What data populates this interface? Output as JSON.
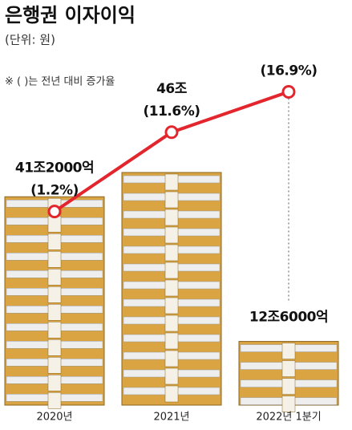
{
  "chart_data": {
    "type": "bar",
    "title": "은행권 이자이익",
    "subtitle": "(단위: 원)",
    "note": "※ (   )는 전년 대비 증가율",
    "categories": [
      "2020년",
      "2021년",
      "2022년 1분기"
    ],
    "values": [
      41200000000000,
      46000000000000,
      12600000000000
    ],
    "value_labels": [
      "41조2000억",
      "46조",
      "12조6000억"
    ],
    "color": "#d9a441",
    "growth": {
      "values": [
        1.2,
        11.6,
        16.9
      ],
      "value_labels": [
        "(1.2%)",
        "(11.6%)",
        "(16.9%)"
      ],
      "color": "#e3262d"
    }
  }
}
